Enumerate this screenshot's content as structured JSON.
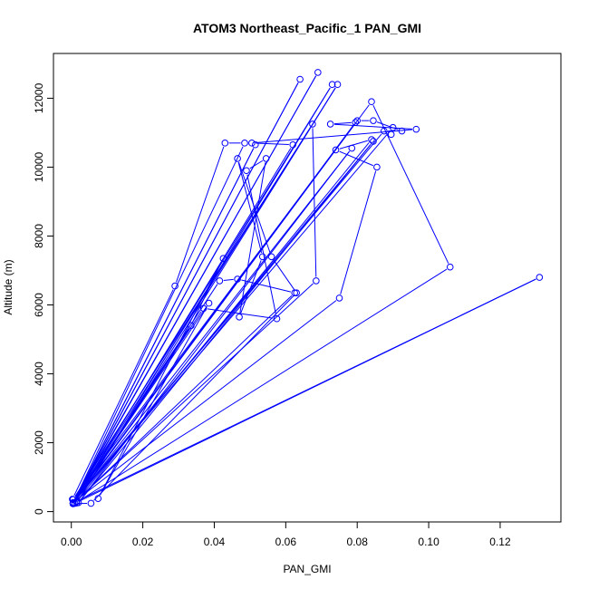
{
  "chart_data": {
    "type": "scatter",
    "title": "ATOM3 Northeast_Pacific_1 PAN_GMI",
    "xlabel": "PAN_GMI",
    "ylabel": "Altitude (m)",
    "xlim": [
      -0.005,
      0.137
    ],
    "ylim": [
      -300,
      13300
    ],
    "xticks": [
      0.0,
      0.02,
      0.04,
      0.06,
      0.08,
      0.1,
      0.12
    ],
    "xtick_labels": [
      "0.00",
      "0.02",
      "0.04",
      "0.06",
      "0.08",
      "0.10",
      "0.12"
    ],
    "yticks": [
      0,
      2000,
      4000,
      6000,
      8000,
      10000,
      12000
    ],
    "ytick_labels": [
      "0",
      "2000",
      "4000",
      "6000",
      "8000",
      "10000",
      "12000"
    ],
    "grid": false,
    "color": "#0000ff",
    "series": [
      {
        "marker": "open-circle",
        "line": true,
        "points": [
          [
            0.0003,
            360
          ],
          [
            0.029,
            6550
          ],
          [
            0.043,
            10700
          ],
          [
            0.0485,
            10700
          ],
          [
            0.0005,
            250
          ],
          [
            0.064,
            12550
          ],
          [
            0.0005,
            230
          ],
          [
            0.069,
            12750
          ],
          [
            0.0005,
            260
          ],
          [
            0.073,
            12400
          ],
          [
            0.0015,
            250
          ],
          [
            0.0745,
            12400
          ],
          [
            0.0005,
            230
          ],
          [
            0.084,
            11900
          ],
          [
            0.106,
            7100
          ],
          [
            0.001,
            240
          ],
          [
            0.131,
            6800
          ],
          [
            0.0015,
            300
          ],
          [
            0.084,
            10800
          ],
          [
            0.074,
            10500
          ],
          [
            0.0855,
            10000
          ],
          [
            0.075,
            6200
          ],
          [
            0.0005,
            260
          ],
          [
            0.0795,
            11300
          ],
          [
            0.0725,
            11250
          ],
          [
            0.0965,
            11100
          ],
          [
            0.0505,
            10700
          ],
          [
            0.062,
            10650
          ],
          [
            0.0005,
            230
          ],
          [
            0.0785,
            10550
          ],
          [
            0.002,
            260
          ],
          [
            0.0845,
            10750
          ],
          [
            0.0005,
            250
          ],
          [
            0.0515,
            10650
          ],
          [
            0.0005,
            230
          ],
          [
            0.0055,
            240
          ],
          [
            0.063,
            6350
          ],
          [
            0.056,
            7400
          ],
          [
            0.0465,
            10250
          ],
          [
            0.0535,
            7400
          ],
          [
            0.047,
            5650
          ],
          [
            0.0545,
            10250
          ],
          [
            0.049,
            9900
          ],
          [
            0.0575,
            5600
          ],
          [
            0.037,
            5900
          ],
          [
            0.0005,
            240
          ],
          [
            0.0415,
            6700
          ],
          [
            0.0465,
            6750
          ],
          [
            0.0625,
            6350
          ],
          [
            0.0005,
            230
          ],
          [
            0.0335,
            5400
          ],
          [
            0.0425,
            7350
          ],
          [
            0.0075,
            380
          ],
          [
            0.0385,
            6050
          ],
          [
            0.0005,
            240
          ],
          [
            0.0685,
            6700
          ],
          [
            0.0675,
            11250
          ],
          [
            0.0005,
            350
          ],
          [
            0.08,
            11350
          ],
          [
            0.0845,
            11350
          ],
          [
            0.0925,
            11050
          ],
          [
            0.0875,
            11050
          ],
          [
            0.0005,
            260
          ],
          [
            0.09,
            11150
          ],
          [
            0.0895,
            10950
          ]
        ]
      }
    ]
  }
}
